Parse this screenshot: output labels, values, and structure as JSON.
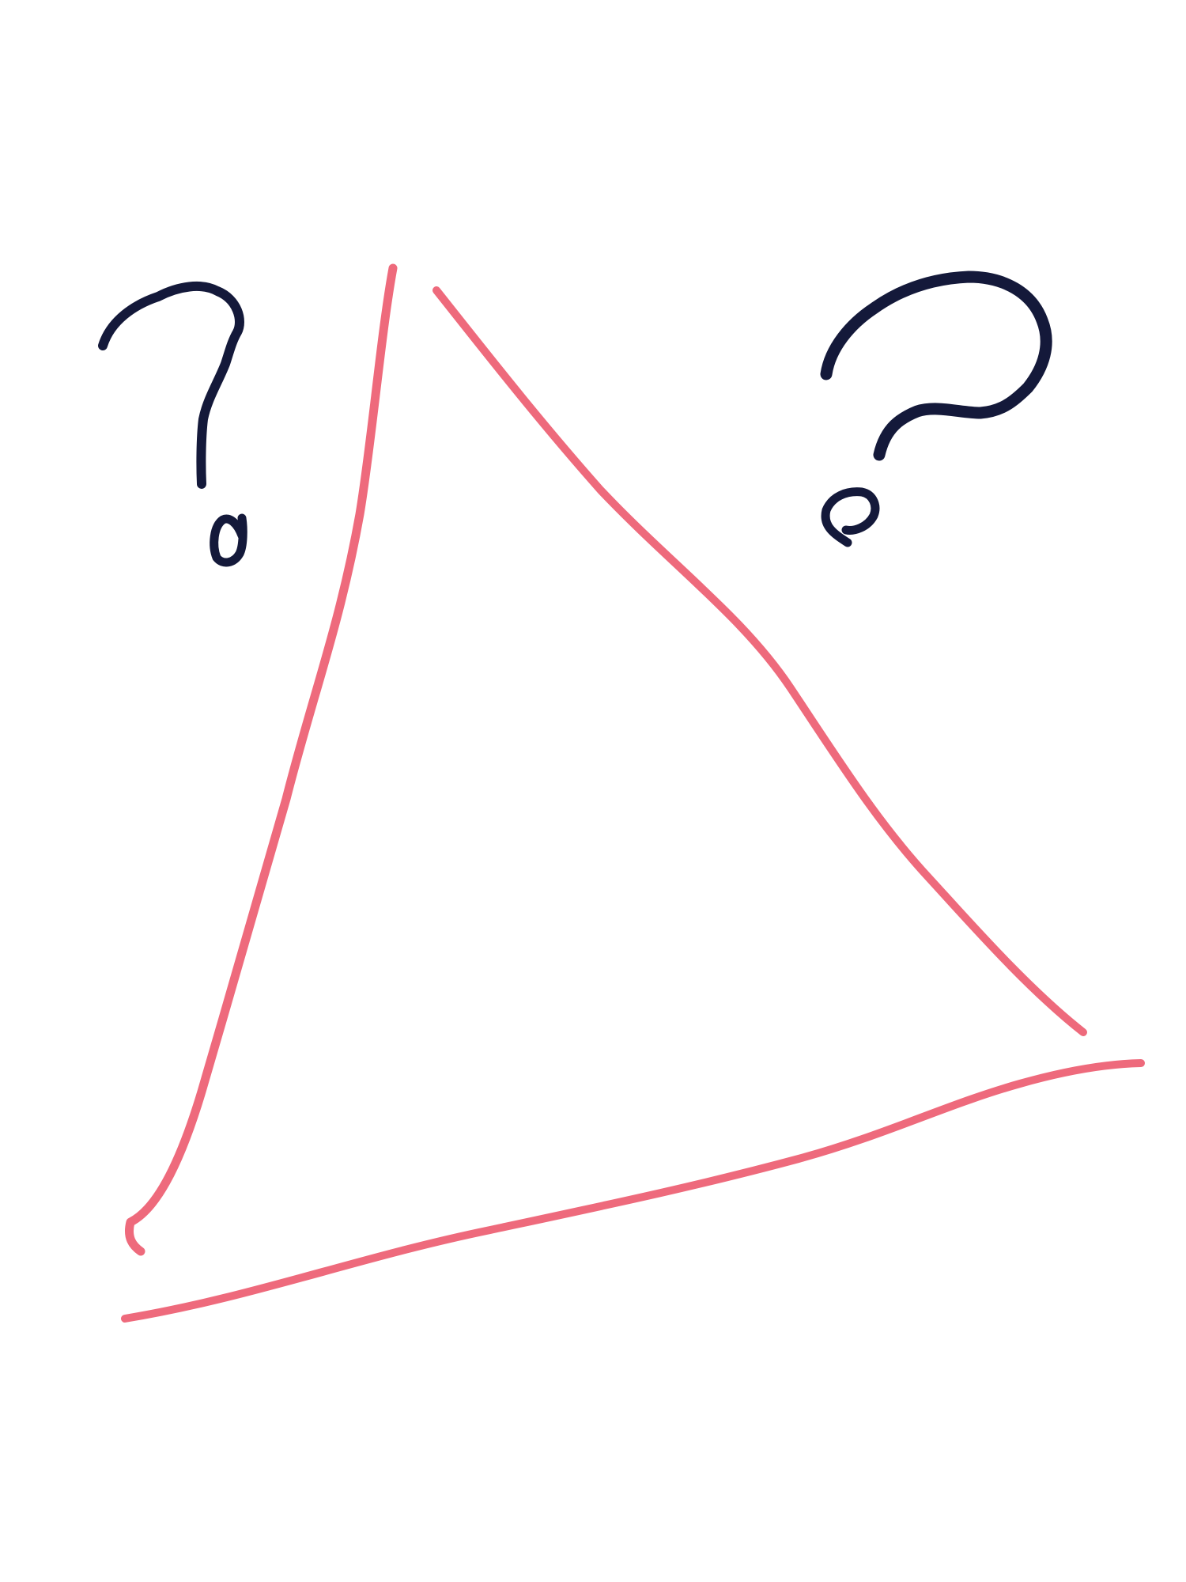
{
  "drawing": {
    "background": "#ffffff",
    "triangle_color": "#ee6a7c",
    "question_mark_color": "#14193a",
    "triangle_sides": [
      "left-side",
      "right-side",
      "bottom-side"
    ],
    "question_marks": [
      "question-mark-left",
      "question-mark-right"
    ]
  }
}
